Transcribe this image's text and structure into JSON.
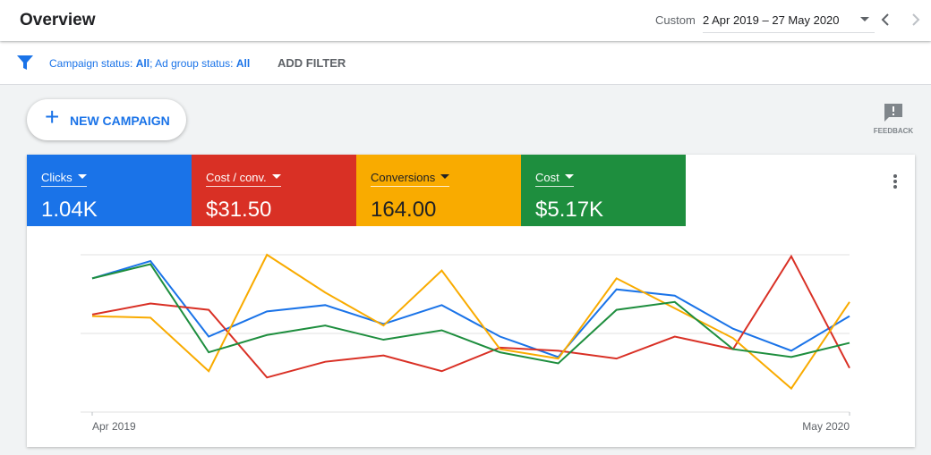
{
  "header": {
    "title": "Overview",
    "range_label": "Custom",
    "date_range": "2 Apr 2019 – 27 May 2020"
  },
  "filter": {
    "campaign_label": "Campaign status:",
    "campaign_value": "All",
    "adgroup_label": "; Ad group status:",
    "adgroup_value": "All",
    "add_filter": "ADD FILTER"
  },
  "new_campaign": "NEW CAMPAIGN",
  "feedback": "FEEDBACK",
  "chart_data": {
    "type": "line",
    "categories": [
      "Apr 2019",
      null,
      null,
      null,
      null,
      null,
      null,
      null,
      null,
      null,
      null,
      null,
      null,
      "May 2020"
    ],
    "ylim": [
      0,
      100
    ],
    "series": [
      {
        "name": "Clicks",
        "total": "1.04K",
        "color": "#1a73e8",
        "values": [
          85,
          96,
          48,
          64,
          68,
          56,
          68,
          48,
          35,
          78,
          74,
          53,
          39,
          61
        ]
      },
      {
        "name": "Cost / conv.",
        "total": "$31.50",
        "color": "#d93025",
        "values": [
          62,
          69,
          65,
          22,
          32,
          36,
          26,
          41,
          39,
          34,
          48,
          40,
          99,
          28
        ]
      },
      {
        "name": "Conversions",
        "total": "164.00",
        "color": "#f9ab00",
        "values": [
          61,
          60,
          26,
          100,
          76,
          55,
          90,
          40,
          34,
          85,
          66,
          47,
          15,
          70
        ]
      },
      {
        "name": "Cost",
        "total": "$5.17K",
        "color": "#1e8e3e",
        "values": [
          85,
          94,
          38,
          49,
          55,
          46,
          52,
          38,
          31,
          65,
          70,
          40,
          35,
          44
        ]
      }
    ]
  }
}
